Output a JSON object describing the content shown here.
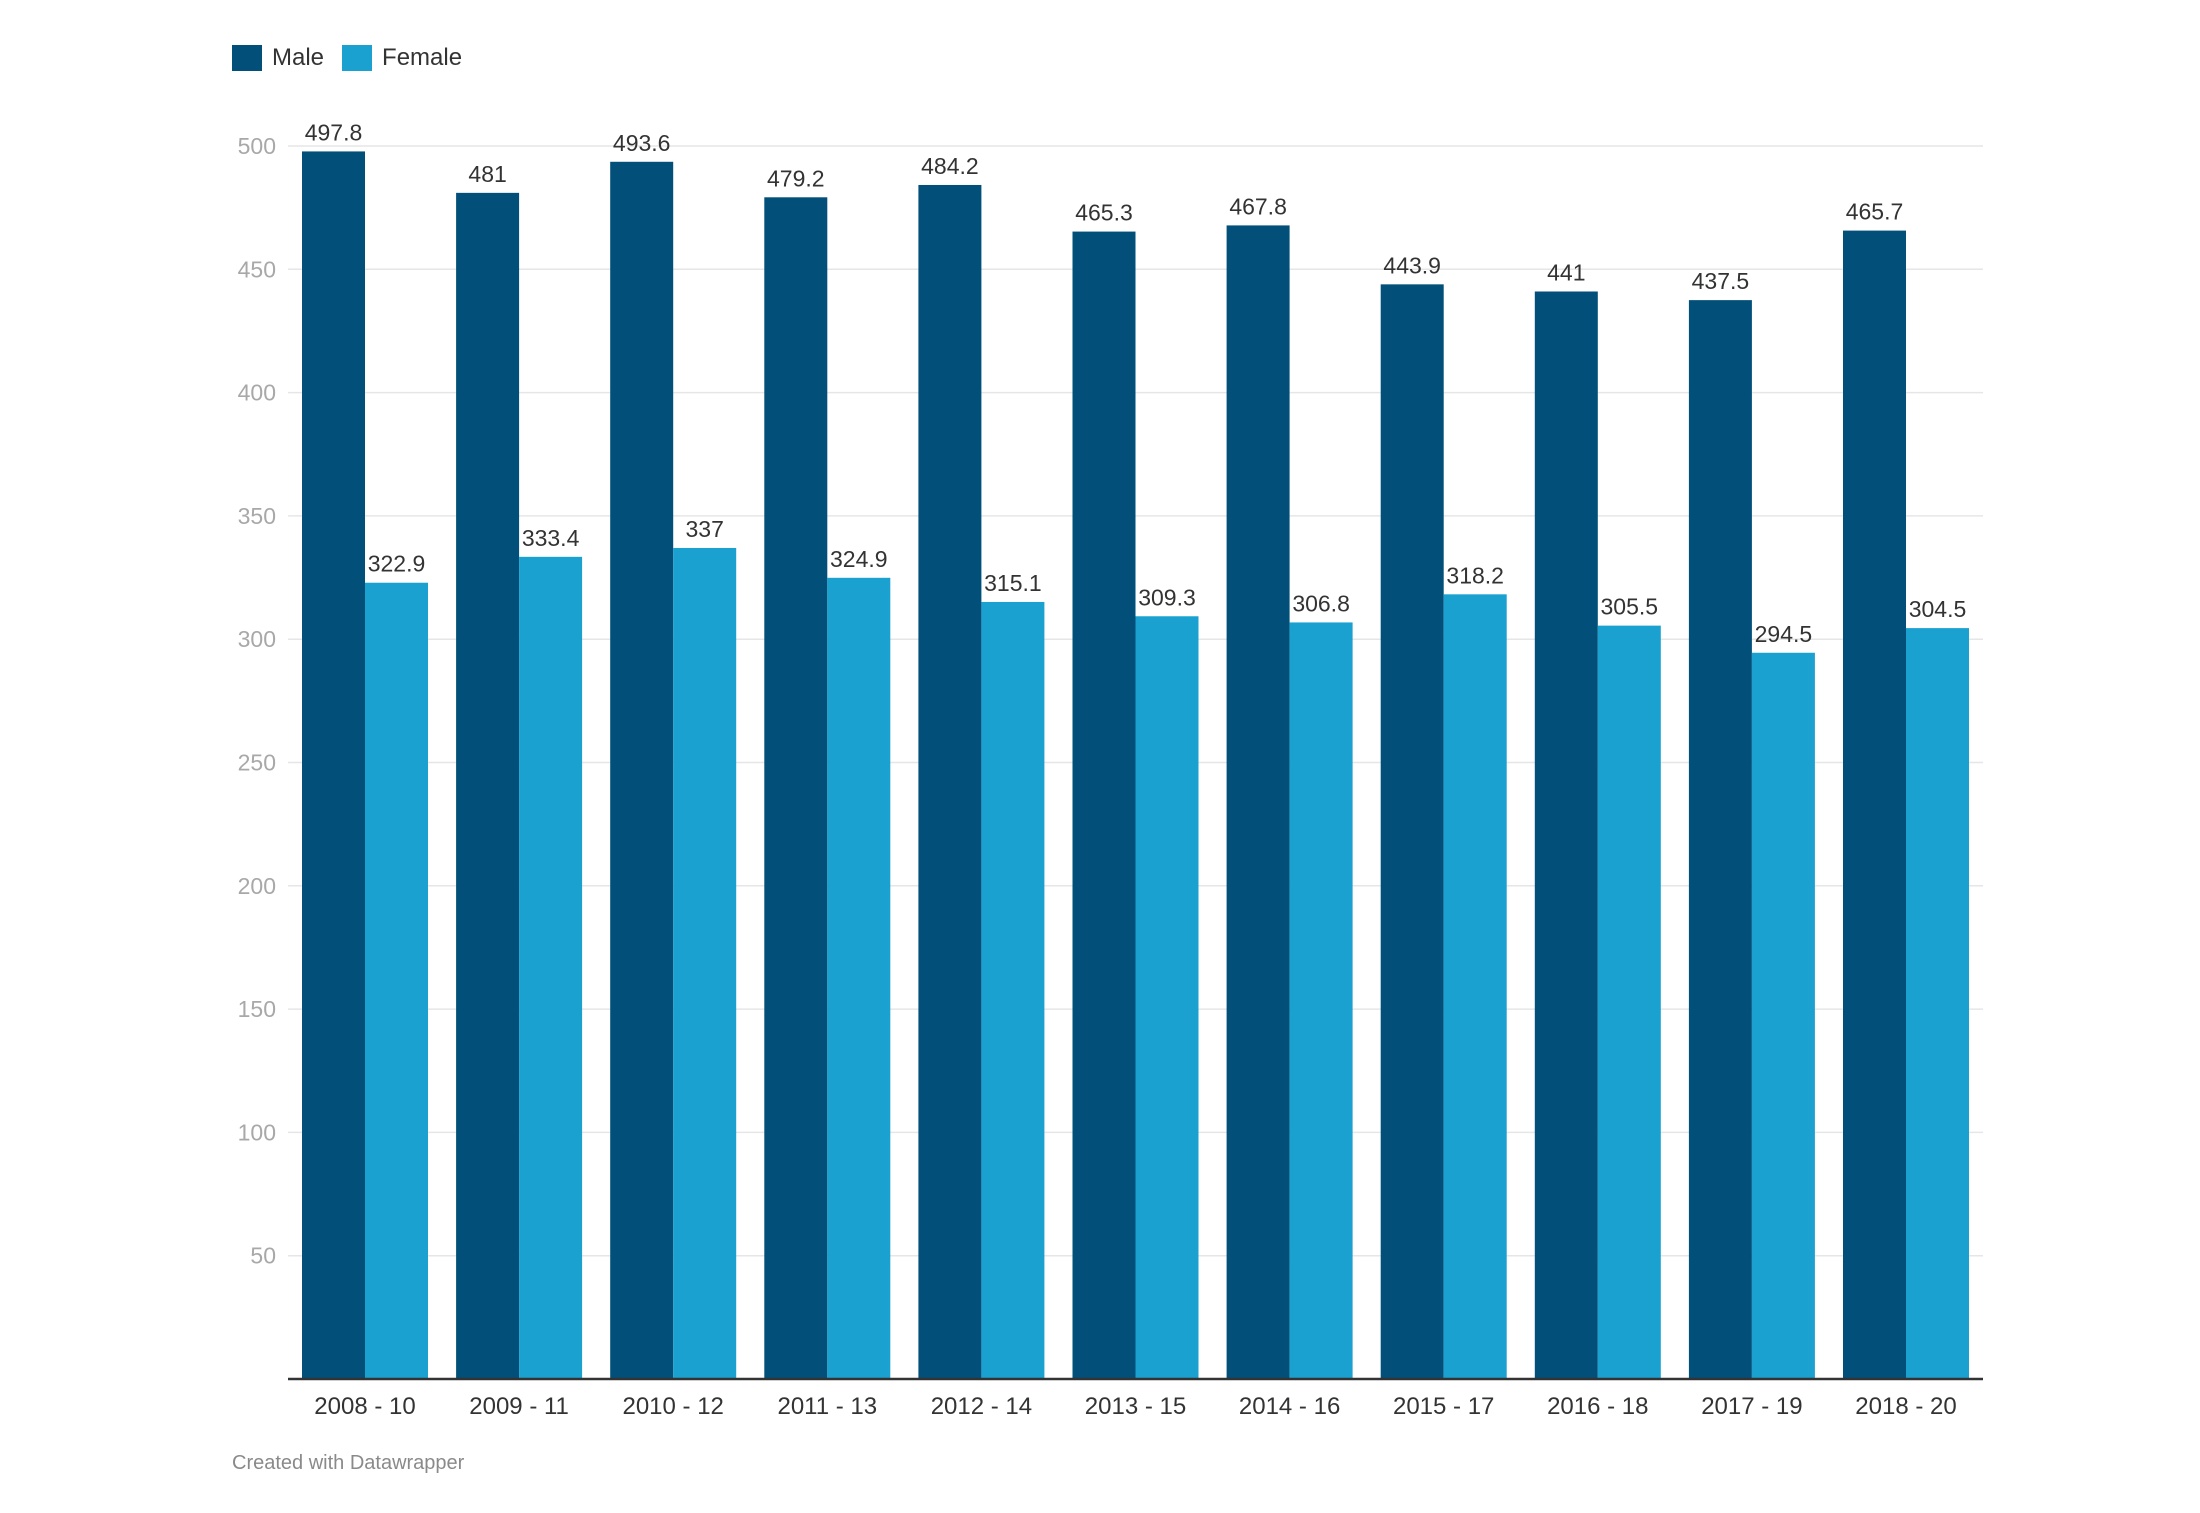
{
  "legend": [
    {
      "name": "Male",
      "color": "#02507a"
    },
    {
      "name": "Female",
      "color": "#1aa1cf"
    }
  ],
  "credit": "Created with Datawrapper",
  "chart_data": {
    "type": "bar",
    "title": "",
    "xlabel": "",
    "ylabel": "",
    "ylim": [
      0,
      500
    ],
    "yticks": [
      50,
      100,
      150,
      200,
      250,
      300,
      350,
      400,
      450,
      500
    ],
    "grid": true,
    "legend_position": "top-left",
    "categories": [
      "2008 - 10",
      "2009 - 11",
      "2010 - 12",
      "2011 - 13",
      "2012 - 14",
      "2013 - 15",
      "2014 - 16",
      "2015 - 17",
      "2016 - 18",
      "2017 - 19",
      "2018 - 20"
    ],
    "series": [
      {
        "name": "Male",
        "color": "#02507a",
        "values": [
          497.8,
          481,
          493.6,
          479.2,
          484.2,
          465.3,
          467.8,
          443.9,
          441,
          437.5,
          465.7
        ]
      },
      {
        "name": "Female",
        "color": "#1aa1cf",
        "values": [
          322.9,
          333.4,
          337,
          324.9,
          315.1,
          309.3,
          306.8,
          318.2,
          305.5,
          294.5,
          304.5
        ]
      }
    ]
  }
}
